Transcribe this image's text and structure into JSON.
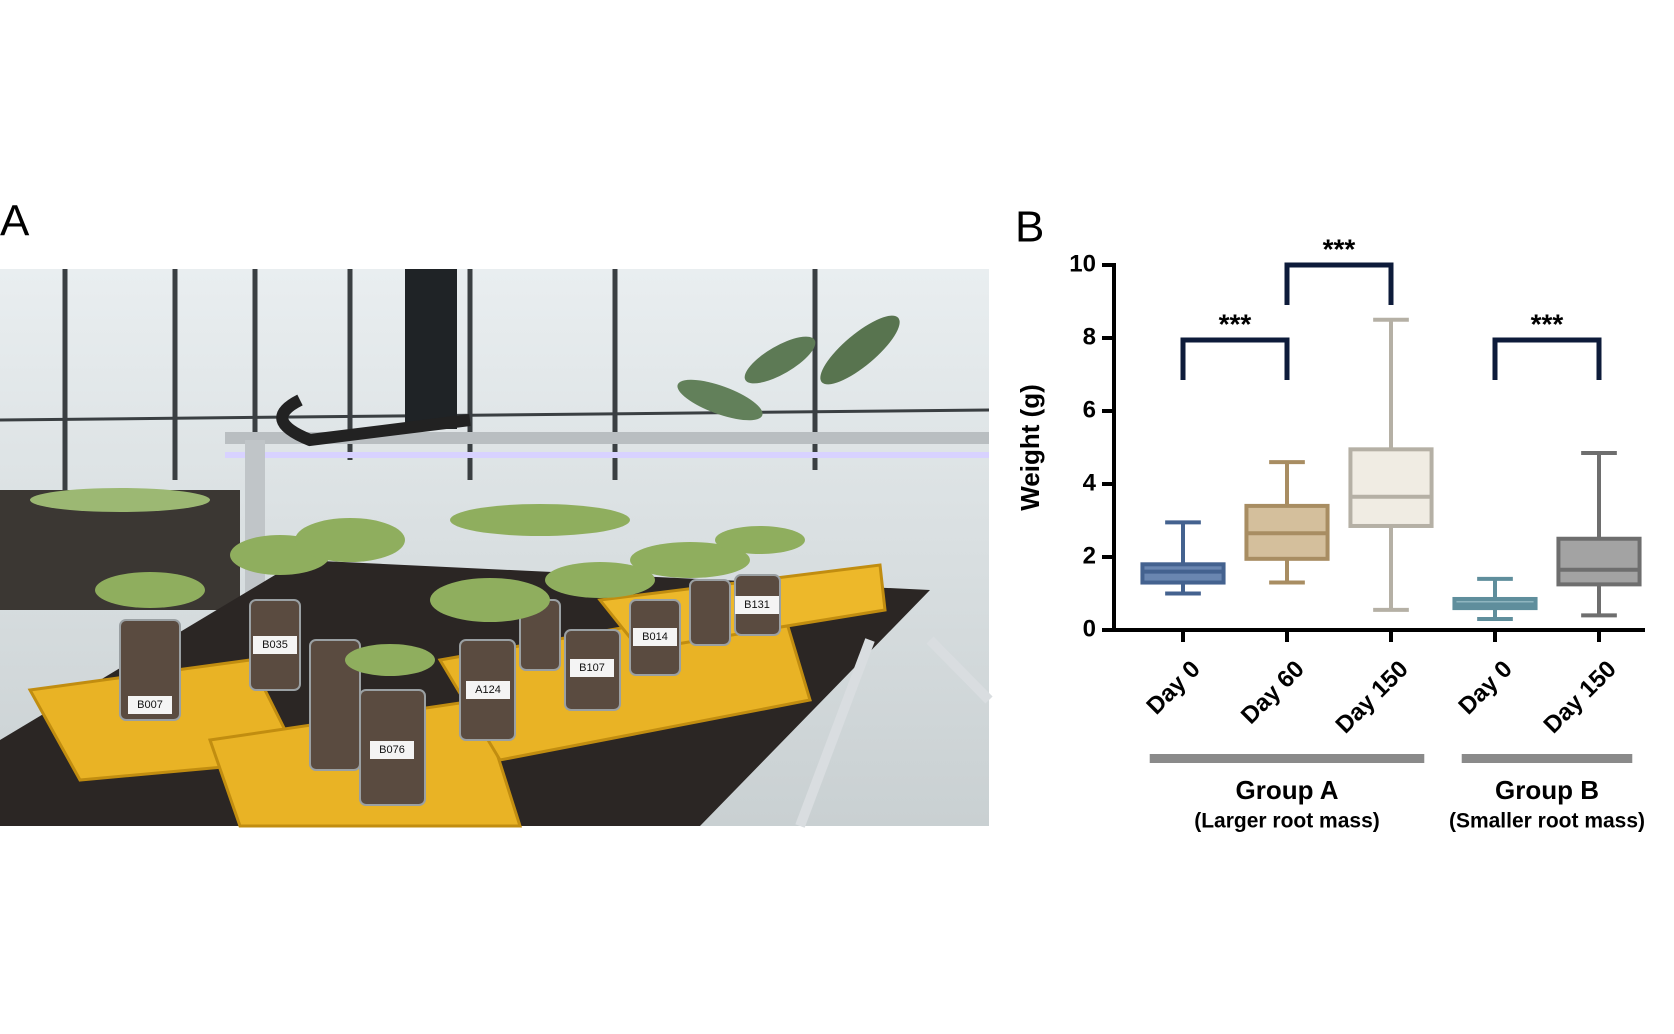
{
  "panels": {
    "a": "A",
    "b": "B"
  },
  "photo": {
    "pot_labels": [
      "B007",
      "B035",
      "B076",
      "A124",
      "B107",
      "B014",
      "B131"
    ]
  },
  "chart_data": {
    "type": "box",
    "ylabel": "Weight (g)",
    "categories": [
      "Day 0",
      "Day 60",
      "Day 150",
      "Day 0",
      "Day 150"
    ],
    "boxes": [
      {
        "min": 1.0,
        "q1": 1.3,
        "median": 1.6,
        "q3": 1.8,
        "max": 2.95,
        "color": "#44628f",
        "fill": "#6a86b0"
      },
      {
        "min": 1.3,
        "q1": 1.95,
        "median": 2.65,
        "q3": 3.4,
        "max": 4.6,
        "color": "#a88d62",
        "fill": "#d4bf9c"
      },
      {
        "min": 0.55,
        "q1": 2.85,
        "median": 3.65,
        "q3": 4.95,
        "max": 8.5,
        "color": "#b5b0a5",
        "fill": "#f0ece3"
      },
      {
        "min": 0.3,
        "q1": 0.6,
        "median": 0.7,
        "q3": 0.85,
        "max": 1.4,
        "color": "#5f8e9c",
        "fill": "#8fb5bf"
      },
      {
        "min": 0.4,
        "q1": 1.25,
        "median": 1.65,
        "q3": 2.5,
        "max": 4.85,
        "color": "#6e6e6e",
        "fill": "#a3a3a3"
      }
    ],
    "ylim": [
      0,
      10
    ],
    "yticks": [
      0,
      2,
      4,
      6,
      8,
      10
    ],
    "significance": [
      {
        "label": "***",
        "from": 0,
        "to": 1
      },
      {
        "label": "***",
        "from": 1,
        "to": 2
      },
      {
        "label": "***",
        "from": 3,
        "to": 4
      }
    ],
    "groups": [
      {
        "name": "Group A",
        "note": "(Larger root mass)",
        "start": 0,
        "end": 2
      },
      {
        "name": "Group B",
        "note": "(Smaller root mass)",
        "start": 3,
        "end": 4
      }
    ]
  }
}
